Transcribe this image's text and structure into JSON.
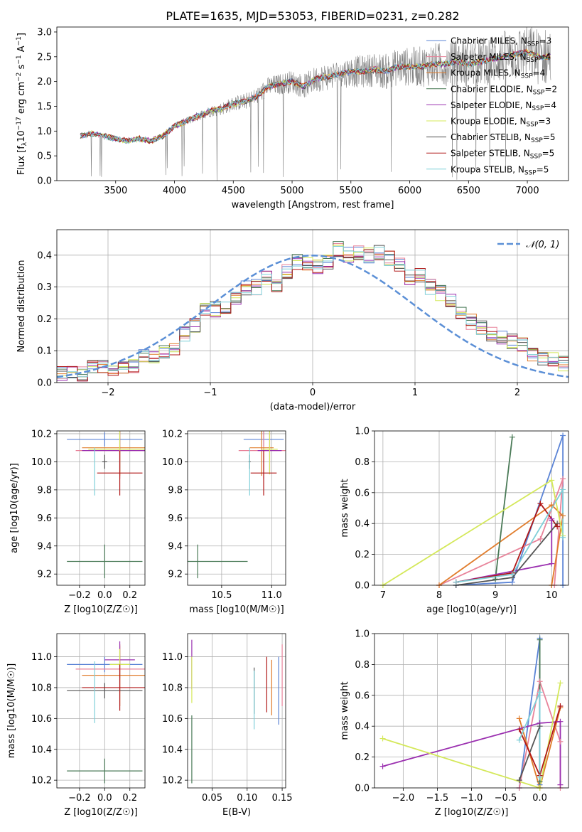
{
  "figure_title": "PLATE=1635, MJD=53053, FIBERID=0231, z=0.282",
  "colors": {
    "chabrier_miles": "#5b84d6",
    "salpeter_miles": "#e8839a",
    "kroupa_miles": "#e07b2a",
    "chabrier_elodie": "#4a7a57",
    "salpeter_elodie": "#9b30b0",
    "kroupa_elodie": "#d4e85a",
    "chabrier_stelib": "#555555",
    "salpeter_stelib": "#b01818",
    "kroupa_stelib": "#7fcfd8",
    "data": "#808080",
    "gauss": "#5b8fd6"
  },
  "chart_data": [
    {
      "id": "spectrum",
      "type": "line",
      "xlabel": "wavelength [Angstrom, rest frame]",
      "ylabel": "Flux [f_λ 10^{-17} erg cm^{-2} s^{-1} A^{-1}]",
      "xlim": [
        3000,
        7350
      ],
      "ylim": [
        0,
        3.1
      ],
      "xticks": [
        3500,
        4000,
        4500,
        5000,
        5500,
        6000,
        6500,
        7000
      ],
      "yticks": [
        0.0,
        0.5,
        1.0,
        1.5,
        2.0,
        2.5,
        3.0
      ],
      "continuum": {
        "x": [
          3200,
          3300,
          3400,
          3500,
          3600,
          3700,
          3800,
          3900,
          4000,
          4100,
          4200,
          4300,
          4400,
          4500,
          4600,
          4700,
          4800,
          4900,
          5000,
          5100,
          5200,
          5300,
          5400,
          5500,
          5600,
          5700,
          5800,
          5900,
          6000,
          6100,
          6200,
          6300,
          6400,
          6500,
          6600,
          6700,
          6800,
          6900,
          7000,
          7100,
          7200
        ],
        "y": [
          0.9,
          0.95,
          0.9,
          0.85,
          0.8,
          0.85,
          0.8,
          0.9,
          1.1,
          1.2,
          1.3,
          1.4,
          1.45,
          1.55,
          1.6,
          1.7,
          1.9,
          1.95,
          2.0,
          1.9,
          2.05,
          2.1,
          2.15,
          2.2,
          2.2,
          2.25,
          2.2,
          2.3,
          2.3,
          2.3,
          2.35,
          2.35,
          2.4,
          2.35,
          2.4,
          2.45,
          2.5,
          2.55,
          2.6,
          2.5,
          2.5
        ]
      },
      "legend": [
        {
          "label": "Chabrier MILES, N",
          "sub": "SSP",
          "suffix": "=3",
          "color": "chabrier_miles"
        },
        {
          "label": "Salpeter MILES, N",
          "sub": "SSP",
          "suffix": "=4",
          "color": "salpeter_miles"
        },
        {
          "label": "Kroupa MILES, N",
          "sub": "SSP",
          "suffix": "=4",
          "color": "kroupa_miles"
        },
        {
          "label": "Chabrier ELODIE, N",
          "sub": "SSP",
          "suffix": "=2",
          "color": "chabrier_elodie"
        },
        {
          "label": "Salpeter ELODIE, N",
          "sub": "SSP",
          "suffix": "=4",
          "color": "salpeter_elodie"
        },
        {
          "label": "Kroupa ELODIE, N",
          "sub": "SSP",
          "suffix": "=3",
          "color": "kroupa_elodie"
        },
        {
          "label": "Chabrier STELIB, N",
          "sub": "SSP",
          "suffix": "=5",
          "color": "chabrier_stelib"
        },
        {
          "label": "Salpeter STELIB, N",
          "sub": "SSP",
          "suffix": "=5",
          "color": "salpeter_stelib"
        },
        {
          "label": "Kroupa STELIB, N",
          "sub": "SSP",
          "suffix": "=5",
          "color": "kroupa_stelib"
        }
      ]
    },
    {
      "id": "residuals",
      "type": "step",
      "xlabel": "(data-model)/error",
      "ylabel": "Normed distribution",
      "xlim": [
        -2.5,
        2.5
      ],
      "ylim": [
        0,
        0.48
      ],
      "xticks": [
        -2,
        -1,
        0,
        1,
        2
      ],
      "yticks": [
        0.0,
        0.1,
        0.2,
        0.3,
        0.4
      ],
      "bin_edges_start": -2.5,
      "bin_width": 0.1,
      "hist": [
        0.03,
        0.03,
        0.025,
        0.05,
        0.055,
        0.045,
        0.05,
        0.055,
        0.08,
        0.085,
        0.1,
        0.11,
        0.15,
        0.18,
        0.23,
        0.23,
        0.24,
        0.27,
        0.3,
        0.3,
        0.33,
        0.31,
        0.35,
        0.38,
        0.37,
        0.36,
        0.38,
        0.42,
        0.4,
        0.41,
        0.4,
        0.41,
        0.39,
        0.37,
        0.33,
        0.34,
        0.3,
        0.28,
        0.26,
        0.22,
        0.19,
        0.17,
        0.15,
        0.14,
        0.13,
        0.12,
        0.09,
        0.08,
        0.07,
        0.06
      ],
      "legend": "𝒩(0, 1)"
    },
    {
      "id": "age_vs_Z",
      "type": "errorbar",
      "xlabel": "Z [log10(Z/Z☉)]",
      "ylabel": "age [log10(age/yr)]",
      "xlim": [
        -0.38,
        0.32
      ],
      "ylim": [
        9.12,
        10.22
      ],
      "xticks": [
        -0.2,
        0.0,
        0.2
      ],
      "xticklabels": [
        "−0.2",
        "0.0",
        "0.2"
      ],
      "yticks": [
        9.2,
        9.4,
        9.6,
        9.8,
        10.0,
        10.2
      ],
      "points": [
        {
          "model": "chabrier_miles",
          "x": 0.0,
          "y": 10.16,
          "xerr": 0.3,
          "yerr": 0.05
        },
        {
          "model": "salpeter_miles",
          "x": 0.12,
          "y": 10.08,
          "xerr": 0.35,
          "yerr": 0.2
        },
        {
          "model": "kroupa_miles",
          "x": 0.12,
          "y": 10.1,
          "xerr": 0.3,
          "yerr": 0.2
        },
        {
          "model": "chabrier_elodie",
          "x": 0.0,
          "y": 9.29,
          "xerr": 0.3,
          "yerr": 0.12
        },
        {
          "model": "salpeter_elodie",
          "x": 0.12,
          "y": 10.08,
          "xerr": 0.3,
          "yerr": 0.15
        },
        {
          "model": "kroupa_elodie",
          "x": 0.12,
          "y": 10.09,
          "xerr": 0.25,
          "yerr": 0.18
        },
        {
          "model": "chabrier_stelib",
          "x": 0.0,
          "y": 10.0,
          "xerr": 0.02,
          "yerr": 0.05
        },
        {
          "model": "salpeter_stelib",
          "x": 0.12,
          "y": 9.92,
          "xerr": 0.18,
          "yerr": 0.16
        },
        {
          "model": "kroupa_stelib",
          "x": -0.08,
          "y": 9.93,
          "xerr": 0.0,
          "yerr": 0.17
        }
      ]
    },
    {
      "id": "age_vs_mass",
      "type": "errorbar",
      "xlabel": "mass [log10(M/M☉)]",
      "ylabel": "",
      "xlim": [
        10.16,
        11.14
      ],
      "ylim": [
        9.12,
        10.22
      ],
      "xticks": [
        10.5,
        11.0
      ],
      "xticklabels": [
        "10.5",
        "11.0"
      ],
      "yticks": [
        9.2,
        9.4,
        9.6,
        9.8,
        10.0,
        10.2
      ],
      "points": [
        {
          "model": "chabrier_miles",
          "x": 10.92,
          "y": 10.16,
          "xerr": 0.2,
          "yerr": 0.05
        },
        {
          "model": "salpeter_miles",
          "x": 10.92,
          "y": 10.08,
          "xerr": 0.25,
          "yerr": 0.2
        },
        {
          "model": "kroupa_miles",
          "x": 10.9,
          "y": 10.1,
          "xerr": 0.12,
          "yerr": 0.2
        },
        {
          "model": "chabrier_elodie",
          "x": 10.26,
          "y": 9.29,
          "xerr": 0.5,
          "yerr": 0.12
        },
        {
          "model": "salpeter_elodie",
          "x": 10.98,
          "y": 10.08,
          "xerr": 0.12,
          "yerr": 0.15
        },
        {
          "model": "kroupa_elodie",
          "x": 10.98,
          "y": 10.09,
          "xerr": 0.08,
          "yerr": 0.18
        },
        {
          "model": "chabrier_stelib",
          "x": 10.78,
          "y": 10.0,
          "xerr": 0.01,
          "yerr": 0.05
        },
        {
          "model": "salpeter_stelib",
          "x": 10.92,
          "y": 9.92,
          "xerr": 0.13,
          "yerr": 0.16
        },
        {
          "model": "kroupa_stelib",
          "x": 10.78,
          "y": 9.93,
          "xerr": 0.0,
          "yerr": 0.17
        }
      ]
    },
    {
      "id": "massweight_vs_age",
      "type": "line",
      "xlabel": "age [log10(age/yr)]",
      "ylabel": "mass weight",
      "xlim": [
        6.85,
        10.3
      ],
      "ylim": [
        0,
        1.0
      ],
      "xticks": [
        7,
        8,
        9,
        10
      ],
      "yticks": [
        0.0,
        0.2,
        0.4,
        0.6,
        0.8,
        1.0
      ],
      "series": [
        {
          "model": "chabrier_miles",
          "x": [
            8.3,
            9.3,
            10.2,
            10.2
          ],
          "y": [
            0.0,
            0.02,
            0.97,
            0.0
          ]
        },
        {
          "model": "salpeter_miles",
          "x": [
            8.0,
            9.8,
            10.2,
            10.05
          ],
          "y": [
            0.0,
            0.3,
            0.69,
            0.0
          ]
        },
        {
          "model": "kroupa_miles",
          "x": [
            8.0,
            10.0,
            10.2,
            10.0
          ],
          "y": [
            0.0,
            0.52,
            0.45,
            0.0
          ]
        },
        {
          "model": "chabrier_elodie",
          "x": [
            9.0,
            9.3
          ],
          "y": [
            0.04,
            0.96
          ]
        },
        {
          "model": "salpeter_elodie",
          "x": [
            8.3,
            10.0,
            10.0,
            10.0
          ],
          "y": [
            0.02,
            0.14,
            0.43,
            0.42
          ]
        },
        {
          "model": "kroupa_elodie",
          "x": [
            7.0,
            10.0,
            10.2
          ],
          "y": [
            0.0,
            0.68,
            0.32
          ]
        },
        {
          "model": "chabrier_stelib",
          "x": [
            8.3,
            9.3,
            10.1
          ],
          "y": [
            0.0,
            0.05,
            0.4
          ]
        },
        {
          "model": "salpeter_stelib",
          "x": [
            8.3,
            9.3,
            9.8,
            10.1
          ],
          "y": [
            0.02,
            0.08,
            0.53,
            0.38
          ]
        },
        {
          "model": "kroupa_stelib",
          "x": [
            8.3,
            9.3,
            10.2,
            10.2
          ],
          "y": [
            0.02,
            0.07,
            0.62,
            0.31
          ]
        }
      ]
    },
    {
      "id": "mass_vs_Z",
      "type": "errorbar",
      "xlabel": "Z [log10(Z/Z☉)]",
      "ylabel": "mass [log10(M/M☉)]",
      "xlim": [
        -0.38,
        0.32
      ],
      "ylim": [
        10.15,
        11.15
      ],
      "xticks": [
        -0.2,
        0.0,
        0.2
      ],
      "xticklabels": [
        "−0.2",
        "0.0",
        "0.2"
      ],
      "yticks": [
        10.2,
        10.4,
        10.6,
        10.8,
        11.0
      ],
      "points": [
        {
          "model": "chabrier_miles",
          "x": 0.0,
          "y": 10.95,
          "xerr": 0.3,
          "yerr": 0.05
        },
        {
          "model": "salpeter_miles",
          "x": 0.12,
          "y": 10.92,
          "xerr": 0.35,
          "yerr": 0.15
        },
        {
          "model": "kroupa_miles",
          "x": 0.12,
          "y": 10.88,
          "xerr": 0.3,
          "yerr": 0.2
        },
        {
          "model": "chabrier_elodie",
          "x": 0.0,
          "y": 10.26,
          "xerr": 0.3,
          "yerr": 0.08
        },
        {
          "model": "salpeter_elodie",
          "x": 0.12,
          "y": 10.98,
          "xerr": 0.12,
          "yerr": 0.12
        },
        {
          "model": "kroupa_elodie",
          "x": 0.12,
          "y": 10.95,
          "xerr": 0.08,
          "yerr": 0.1
        },
        {
          "model": "chabrier_stelib",
          "x": 0.0,
          "y": 10.78,
          "xerr": 0.3,
          "yerr": 0.05
        },
        {
          "model": "salpeter_stelib",
          "x": 0.12,
          "y": 10.8,
          "xerr": 0.3,
          "yerr": 0.15
        },
        {
          "model": "kroupa_stelib",
          "x": -0.08,
          "y": 10.77,
          "xerr": 0.0,
          "yerr": 0.2
        }
      ]
    },
    {
      "id": "mass_vs_ebv",
      "type": "errorbar",
      "xlabel": "E(B-V)",
      "ylabel": "",
      "xlim": [
        0.015,
        0.155
      ],
      "ylim": [
        10.15,
        11.15
      ],
      "xticks": [
        0.05,
        0.1,
        0.15
      ],
      "xticklabels": [
        "0.05",
        "0.10",
        "0.15"
      ],
      "yticks": [
        10.2,
        10.4,
        10.6,
        10.8,
        11.0
      ],
      "points": [
        {
          "model": "chabrier_miles",
          "x": 0.145,
          "y": 10.78,
          "xerr": 0.0,
          "yerr": 0.22
        },
        {
          "model": "salpeter_miles",
          "x": 0.15,
          "y": 10.88,
          "xerr": 0.0,
          "yerr": 0.2
        },
        {
          "model": "kroupa_miles",
          "x": 0.135,
          "y": 10.8,
          "xerr": 0.0,
          "yerr": 0.18
        },
        {
          "model": "chabrier_elodie",
          "x": 0.021,
          "y": 10.4,
          "xerr": 0.0,
          "yerr": 0.22
        },
        {
          "model": "salpeter_elodie",
          "x": 0.021,
          "y": 10.95,
          "xerr": 0.0,
          "yerr": 0.16
        },
        {
          "model": "kroupa_elodie",
          "x": 0.021,
          "y": 10.85,
          "xerr": 0.0,
          "yerr": 0.15
        },
        {
          "model": "chabrier_stelib",
          "x": 0.11,
          "y": 10.78,
          "xerr": 0.0,
          "yerr": 0.15
        },
        {
          "model": "salpeter_stelib",
          "x": 0.128,
          "y": 10.82,
          "xerr": 0.0,
          "yerr": 0.18
        },
        {
          "model": "kroupa_stelib",
          "x": 0.11,
          "y": 10.72,
          "xerr": 0.0,
          "yerr": 0.19
        }
      ]
    },
    {
      "id": "massweight_vs_Z",
      "type": "line",
      "xlabel": "Z [log10(Z/Z☉)]",
      "ylabel": "mass weight",
      "xlim": [
        -2.42,
        0.42
      ],
      "ylim": [
        0,
        1.0
      ],
      "xticks": [
        -2.0,
        -1.5,
        -1.0,
        -0.5,
        0.0
      ],
      "xticklabels": [
        "−2.0",
        "−1.5",
        "−1.0",
        "−0.5",
        "0.0"
      ],
      "yticks": [
        0.0,
        0.2,
        0.4,
        0.6,
        0.8,
        1.0
      ],
      "series": [
        {
          "model": "chabrier_miles",
          "x": [
            -0.3,
            0.0,
            0.0
          ],
          "y": [
            0.0,
            0.97,
            0.02
          ]
        },
        {
          "model": "salpeter_miles",
          "x": [
            -0.3,
            0.0,
            0.3,
            0.3
          ],
          "y": [
            0.0,
            0.69,
            0.3,
            0.0
          ]
        },
        {
          "model": "kroupa_miles",
          "x": [
            -0.3,
            0.0,
            0.3
          ],
          "y": [
            0.45,
            0.0,
            0.52
          ]
        },
        {
          "model": "chabrier_elodie",
          "x": [
            0.0,
            0.0
          ],
          "y": [
            0.04,
            0.96
          ]
        },
        {
          "model": "salpeter_elodie",
          "x": [
            -2.3,
            0.0,
            0.3,
            0.3
          ],
          "y": [
            0.14,
            0.42,
            0.43,
            0.02
          ]
        },
        {
          "model": "kroupa_elodie",
          "x": [
            -2.3,
            0.0,
            0.3
          ],
          "y": [
            0.32,
            0.0,
            0.68
          ]
        },
        {
          "model": "chabrier_stelib",
          "x": [
            -0.3,
            0.0
          ],
          "y": [
            0.05,
            0.4
          ]
        },
        {
          "model": "salpeter_stelib",
          "x": [
            -0.3,
            0.0,
            0.3
          ],
          "y": [
            0.38,
            0.08,
            0.53
          ]
        },
        {
          "model": "kroupa_stelib",
          "x": [
            -0.3,
            0.0,
            0.0
          ],
          "y": [
            0.31,
            0.62,
            0.07
          ]
        }
      ]
    }
  ]
}
